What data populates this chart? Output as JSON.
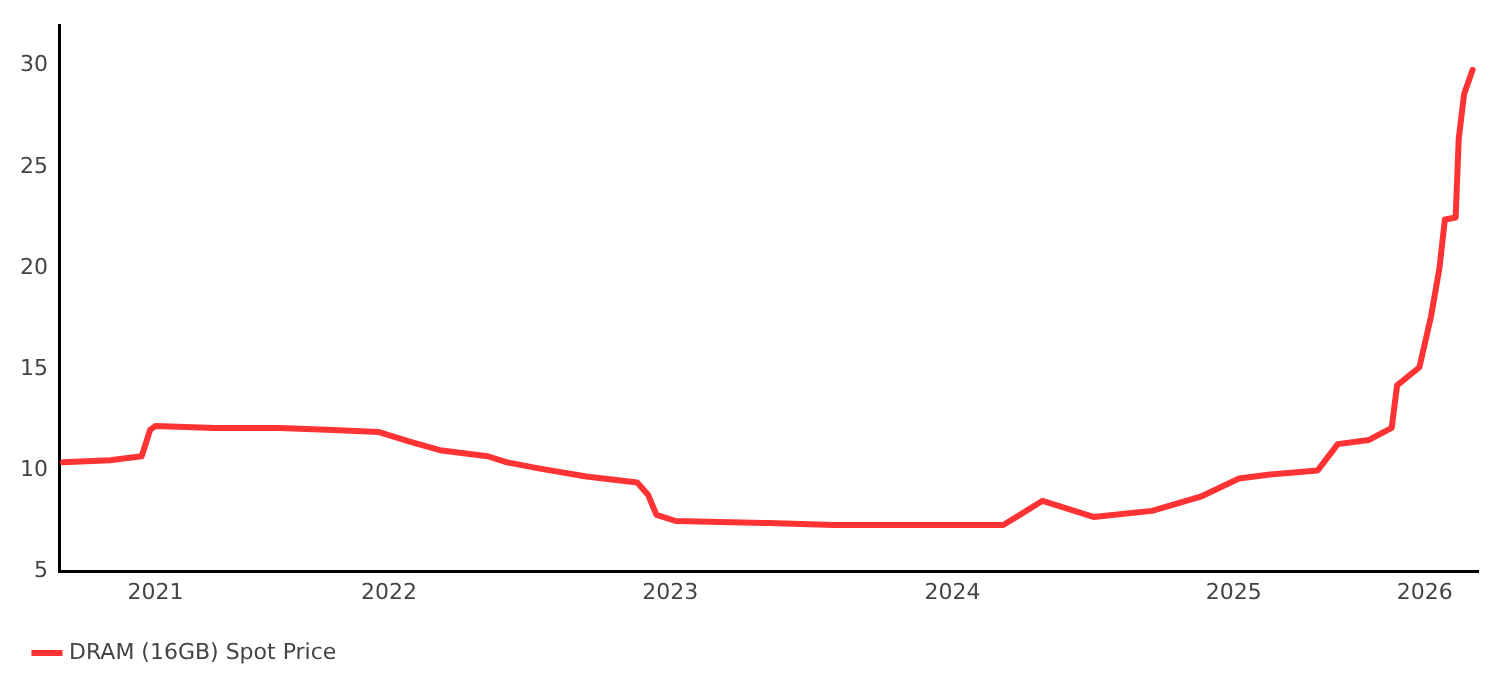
{
  "chart_data": {
    "type": "line",
    "legend": "bottom left",
    "grid": false,
    "marker": "none",
    "line_style": "solid",
    "xlim": [
      "2021-05-01",
      "2026-05-15"
    ],
    "ylim": [
      5,
      32
    ],
    "xticks": [
      {
        "value": "2021-09-02",
        "label": "2021"
      },
      {
        "value": "2022-07-02",
        "label": "2022"
      },
      {
        "value": "2023-07-02",
        "label": "2023"
      },
      {
        "value": "2024-07-02",
        "label": "2024"
      },
      {
        "value": "2025-07-02",
        "label": "2025"
      },
      {
        "value": "2026-03-07",
        "label": "2026"
      }
    ],
    "yticks": [
      5,
      10,
      15,
      20,
      25,
      30
    ],
    "series": [
      {
        "name": "DRAM (16GB) Spot Price",
        "color": "#ff3333",
        "x": [
          "2021-05-05",
          "2021-07-05",
          "2021-08-15",
          "2021-08-26",
          "2021-09-02",
          "2021-11-18",
          "2022-02-10",
          "2022-04-20",
          "2022-06-18",
          "2022-07-31",
          "2022-09-06",
          "2022-11-07",
          "2022-12-02",
          "2023-01-12",
          "2023-03-15",
          "2023-05-20",
          "2023-06-03",
          "2023-06-14",
          "2023-07-09",
          "2023-11-07",
          "2024-01-30",
          "2024-08-11",
          "2024-09-06",
          "2024-10-27",
          "2025-01-01",
          "2025-03-18",
          "2025-05-20",
          "2025-07-09",
          "2025-08-18",
          "2025-10-19",
          "2025-11-14",
          "2025-12-24",
          "2026-01-23",
          "2026-01-30",
          "2026-02-28",
          "2026-03-15",
          "2026-03-26",
          "2026-04-02",
          "2026-04-16",
          "2026-04-20",
          "2026-04-27",
          "2026-05-08"
        ],
        "values": [
          10.4,
          10.5,
          10.7,
          12.0,
          12.2,
          12.1,
          12.1,
          12.0,
          11.9,
          11.4,
          11.0,
          10.7,
          10.4,
          10.1,
          9.7,
          9.4,
          8.8,
          7.8,
          7.5,
          7.4,
          7.3,
          7.3,
          7.3,
          8.5,
          7.7,
          8.0,
          8.7,
          9.6,
          9.8,
          10.0,
          11.3,
          11.5,
          12.1,
          14.2,
          15.1,
          17.6,
          20.0,
          22.4,
          22.5,
          26.4,
          28.6,
          29.8
        ]
      }
    ]
  }
}
